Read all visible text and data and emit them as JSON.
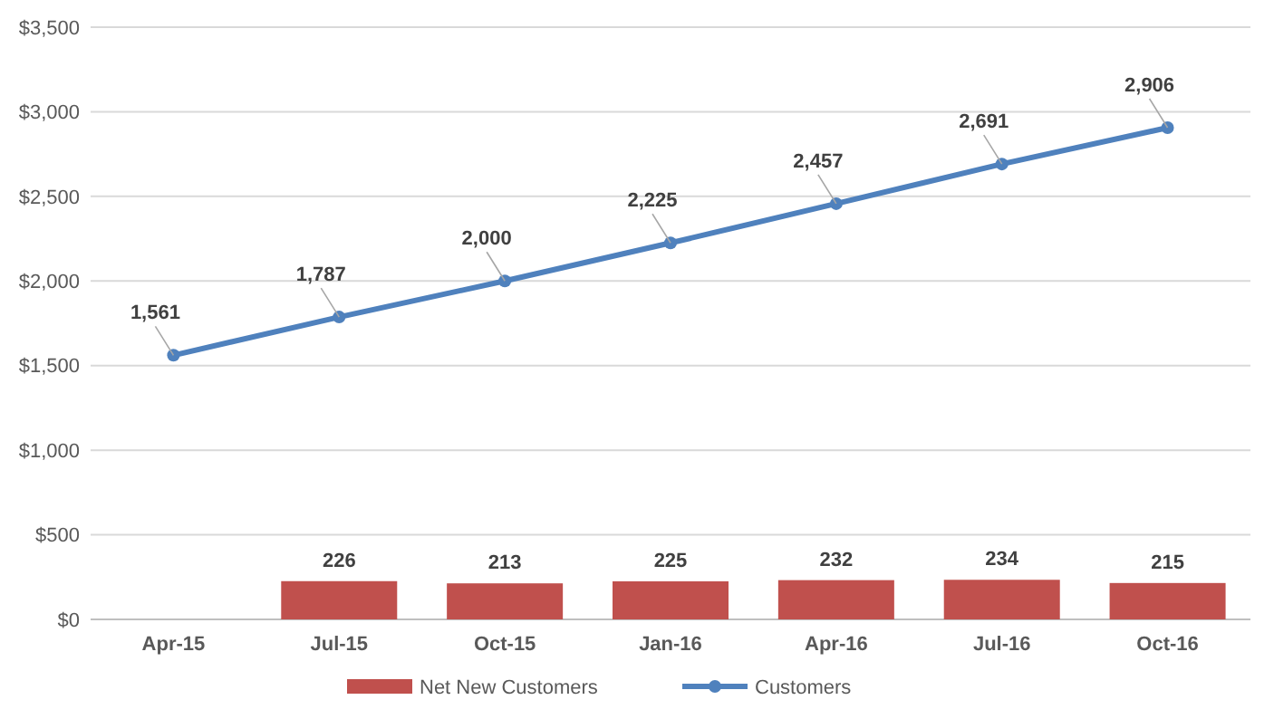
{
  "chart_data": {
    "type": "bar",
    "categories": [
      "Apr-15",
      "Jul-15",
      "Oct-15",
      "Jan-16",
      "Apr-16",
      "Jul-16",
      "Oct-16"
    ],
    "series": [
      {
        "name": "Net New Customers",
        "color": "#c0504d",
        "values": [
          null,
          226,
          213,
          225,
          232,
          234,
          215
        ]
      },
      {
        "name": "Customers",
        "type": "line",
        "color": "#4f81bd",
        "marker": "circle",
        "values": [
          1561,
          1787,
          2000,
          2225,
          2457,
          2691,
          2906
        ],
        "value_labels": [
          "1,561",
          "1,787",
          "2,000",
          "2,225",
          "2,457",
          "2,691",
          "2,906"
        ]
      }
    ],
    "ylim": [
      0,
      3500
    ],
    "yticks": [
      {
        "value": 0,
        "label": "$0"
      },
      {
        "value": 500,
        "label": "$500"
      },
      {
        "value": 1000,
        "label": "$1,000"
      },
      {
        "value": 1500,
        "label": "$1,500"
      },
      {
        "value": 2000,
        "label": "$2,000"
      },
      {
        "value": 2500,
        "label": "$2,500"
      },
      {
        "value": 3000,
        "label": "$3,000"
      },
      {
        "value": 3500,
        "label": "$3,500"
      }
    ],
    "grid": "y",
    "legend": "bottom",
    "data_labels": true
  }
}
